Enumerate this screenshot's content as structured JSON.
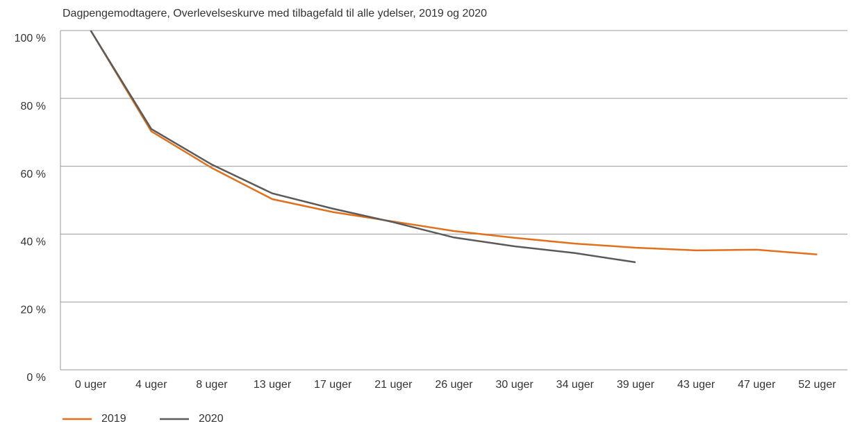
{
  "chart_data": {
    "type": "line",
    "title": "Dagpengemodtagere, Overlevelseskurve med tilbagefald til alle ydelser, 2019 og 2020",
    "categories": [
      "0 uger",
      "4 uger",
      "8 uger",
      "13 uger",
      "17 uger",
      "21 uger",
      "26 uger",
      "30 uger",
      "34 uger",
      "39 uger",
      "43 uger",
      "47 uger",
      "52 uger"
    ],
    "series": [
      {
        "name": "2019",
        "color": "#e2701b",
        "values": [
          100,
          70.3,
          59.5,
          50.3,
          46.5,
          43.7,
          40.9,
          38.9,
          37.2,
          36,
          35.2,
          35.4,
          34
        ]
      },
      {
        "name": "2020",
        "color": "#5a5a5a",
        "values": [
          100,
          71,
          60.5,
          52,
          47.5,
          43.5,
          39,
          36.4,
          34.4,
          31.7,
          null,
          null,
          null
        ]
      }
    ],
    "ylim": [
      0,
      100
    ],
    "yticks": [
      {
        "value": 0,
        "label": "0 %"
      },
      {
        "value": 20,
        "label": "20 %"
      },
      {
        "value": 40,
        "label": "40 %"
      },
      {
        "value": 60,
        "label": "60 %"
      },
      {
        "value": 80,
        "label": "80 %"
      },
      {
        "value": 100,
        "label": "100 %"
      }
    ],
    "grid": true,
    "legend": "bottom-left"
  }
}
